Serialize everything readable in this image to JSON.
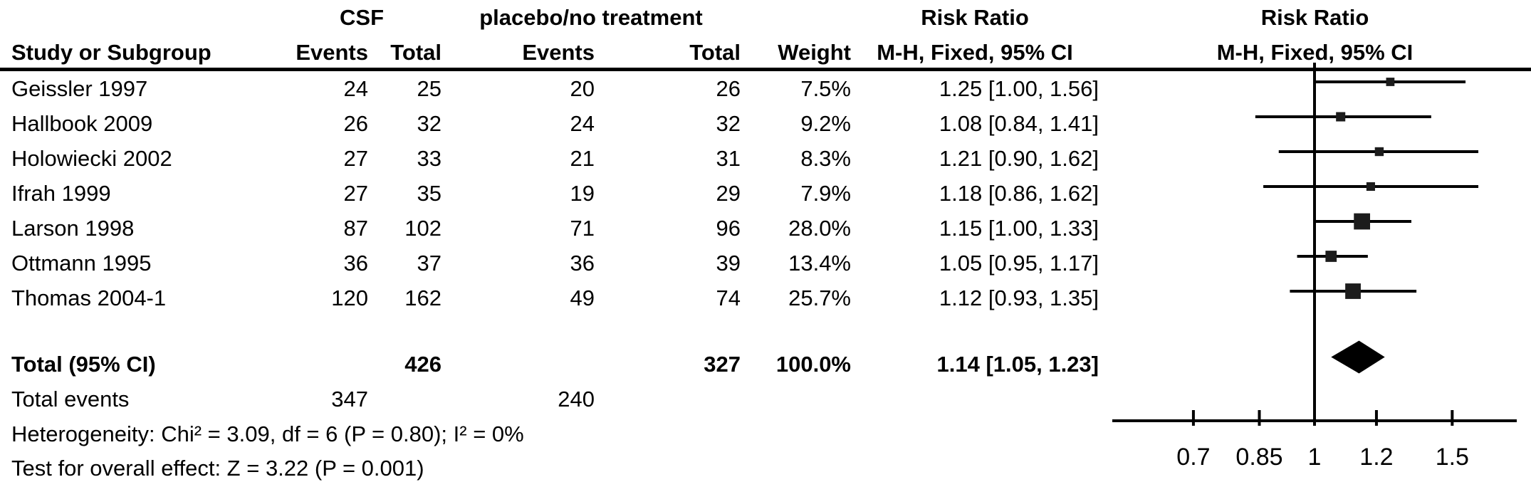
{
  "header": {
    "group_csf": "CSF",
    "group_placebo": "placebo/no treatment",
    "group_rr_text": "Risk Ratio",
    "group_rr_plot": "Risk Ratio",
    "col_study": "Study or Subgroup",
    "col_events_csf": "Events",
    "col_total_csf": "Total",
    "col_events_placebo": "Events",
    "col_total_placebo": "Total",
    "col_weight": "Weight",
    "col_mh_text": "M-H, Fixed, 95% CI",
    "col_mh_plot": "M-H, Fixed, 95% CI"
  },
  "studies": [
    {
      "name": "Geissler 1997",
      "csf_events": "24",
      "csf_total": "25",
      "placebo_events": "20",
      "placebo_total": "26",
      "weight": "7.5%",
      "rr_text": "1.25 [1.00, 1.56]"
    },
    {
      "name": "Hallbook 2009",
      "csf_events": "26",
      "csf_total": "32",
      "placebo_events": "24",
      "placebo_total": "32",
      "weight": "9.2%",
      "rr_text": "1.08 [0.84, 1.41]"
    },
    {
      "name": "Holowiecki 2002",
      "csf_events": "27",
      "csf_total": "33",
      "placebo_events": "21",
      "placebo_total": "31",
      "weight": "8.3%",
      "rr_text": "1.21 [0.90, 1.62]"
    },
    {
      "name": "Ifrah 1999",
      "csf_events": "27",
      "csf_total": "35",
      "placebo_events": "19",
      "placebo_total": "29",
      "weight": "7.9%",
      "rr_text": "1.18 [0.86, 1.62]"
    },
    {
      "name": "Larson 1998",
      "csf_events": "87",
      "csf_total": "102",
      "placebo_events": "71",
      "placebo_total": "96",
      "weight": "28.0%",
      "rr_text": "1.15 [1.00, 1.33]"
    },
    {
      "name": "Ottmann 1995",
      "csf_events": "36",
      "csf_total": "37",
      "placebo_events": "36",
      "placebo_total": "39",
      "weight": "13.4%",
      "rr_text": "1.05 [0.95, 1.17]"
    },
    {
      "name": "Thomas 2004-1",
      "csf_events": "120",
      "csf_total": "162",
      "placebo_events": "49",
      "placebo_total": "74",
      "weight": "25.7%",
      "rr_text": "1.12 [0.93, 1.35]"
    }
  ],
  "total": {
    "label": "Total (95% CI)",
    "csf_total": "426",
    "placebo_total": "327",
    "weight": "100.0%",
    "rr_text": "1.14 [1.05, 1.23]"
  },
  "total_events": {
    "label": "Total events",
    "csf_events": "347",
    "placebo_events": "240"
  },
  "footer": {
    "heterogeneity": "Heterogeneity: Chi² = 3.09, df = 6 (P = 0.80); I² = 0%",
    "overall_effect": "Test for overall effect: Z = 3.22 (P = 0.001)"
  },
  "chart_data": {
    "type": "forest",
    "effect_measure": "Risk Ratio, M-H, Fixed, 95% CI",
    "x_scale": "log",
    "null_line": 1,
    "axis_ticks": [
      0.7,
      0.85,
      1,
      1.2,
      1.5
    ],
    "axis_range": [
      0.55,
      1.82
    ],
    "studies": [
      {
        "name": "Geissler 1997",
        "rr": 1.25,
        "ci_low": 1.0,
        "ci_high": 1.56,
        "weight_pct": 7.5
      },
      {
        "name": "Hallbook 2009",
        "rr": 1.08,
        "ci_low": 0.84,
        "ci_high": 1.41,
        "weight_pct": 9.2
      },
      {
        "name": "Holowiecki 2002",
        "rr": 1.21,
        "ci_low": 0.9,
        "ci_high": 1.62,
        "weight_pct": 8.3
      },
      {
        "name": "Ifrah 1999",
        "rr": 1.18,
        "ci_low": 0.86,
        "ci_high": 1.62,
        "weight_pct": 7.9
      },
      {
        "name": "Larson 1998",
        "rr": 1.15,
        "ci_low": 1.0,
        "ci_high": 1.33,
        "weight_pct": 28.0
      },
      {
        "name": "Ottmann 1995",
        "rr": 1.05,
        "ci_low": 0.95,
        "ci_high": 1.17,
        "weight_pct": 13.4
      },
      {
        "name": "Thomas 2004-1",
        "rr": 1.12,
        "ci_low": 0.93,
        "ci_high": 1.35,
        "weight_pct": 25.7
      }
    ],
    "overall": {
      "rr": 1.14,
      "ci_low": 1.05,
      "ci_high": 1.23,
      "weight_pct": 100.0
    },
    "colors": {
      "marker": "#1c1c1c",
      "line": "#000000",
      "text": "#000000",
      "background": "#ffffff"
    }
  }
}
